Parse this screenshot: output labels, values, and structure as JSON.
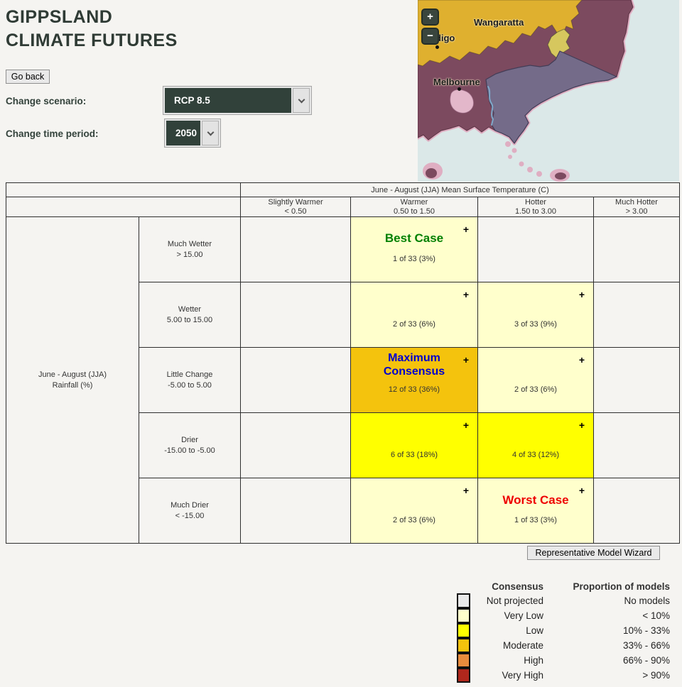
{
  "header": {
    "title_line1": "GIPPSLAND",
    "title_line2": "CLIMATE FUTURES"
  },
  "controls": {
    "go_back": "Go back",
    "scenario_label": "Change scenario:",
    "scenario_value": "RCP 8.5",
    "period_label": "Change time period:",
    "period_value": "2050"
  },
  "map": {
    "zoom_in": "+",
    "zoom_out": "−",
    "cities": [
      {
        "label": "Wangaratta"
      },
      {
        "label": "ndigo"
      },
      {
        "label": "Melbourne"
      }
    ],
    "colors": {
      "ocean": "#DBE8E8",
      "region_gold": "#DFB02F",
      "region_maroon": "#7C4A5F",
      "region_purple": "#746B89",
      "region_alpine": "#D6C75E",
      "coast_pink": "#DFAEC2",
      "bay_pink": "#E3B7CA",
      "river_blue": "#7FA8C9",
      "control_bg": "#39453D"
    }
  },
  "matrix": {
    "temp_axis_title": "June - August (JJA) Mean Surface Temperature (C)",
    "rain_axis_line1": "June - August (JJA)",
    "rain_axis_line2": "Rainfall (%)",
    "plus": "+",
    "columns": [
      {
        "label": "Slightly Warmer",
        "range": "< 0.50"
      },
      {
        "label": "Warmer",
        "range": "0.50 to 1.50"
      },
      {
        "label": "Hotter",
        "range": "1.50 to 3.00"
      },
      {
        "label": "Much Hotter",
        "range": "> 3.00"
      }
    ],
    "rows": [
      {
        "label": "Much Wetter",
        "range": "> 15.00"
      },
      {
        "label": "Wetter",
        "range": "5.00 to 15.00"
      },
      {
        "label": "Little Change",
        "range": "-5.00 to 5.00"
      },
      {
        "label": "Drier",
        "range": "-15.00 to -5.00"
      },
      {
        "label": "Much Drier",
        "range": "< -15.00"
      }
    ],
    "levels": {
      "empty": "#E9E9E9",
      "very_low": "#FFFFCC",
      "low": "#FFFF00",
      "moderate": "#F4C30D"
    },
    "grid": [
      [
        null,
        {
          "tag": "Best Case",
          "tag_class": "tag-best",
          "tag_color": "#008000",
          "count": "1 of 33 (3%)",
          "level": "very_low"
        },
        null,
        null
      ],
      [
        null,
        {
          "count": "2 of 33 (6%)",
          "level": "very_low"
        },
        {
          "count": "3 of 33 (9%)",
          "level": "very_low"
        },
        null
      ],
      [
        null,
        {
          "tag": "Maximum Consensus",
          "tag_class": "tag-max",
          "tag_color": "#0000CC",
          "count": "12 of 33 (36%)",
          "level": "moderate"
        },
        {
          "count": "2 of 33 (6%)",
          "level": "very_low"
        },
        null
      ],
      [
        null,
        {
          "count": "6 of 33 (18%)",
          "level": "low"
        },
        {
          "count": "4 of 33 (12%)",
          "level": "low"
        },
        null
      ],
      [
        null,
        {
          "count": "2 of 33 (6%)",
          "level": "very_low"
        },
        {
          "tag": "Worst Case",
          "tag_class": "tag-worst",
          "tag_color": "#EE0000",
          "count": "1 of 33 (3%)",
          "level": "very_low"
        },
        null
      ]
    ]
  },
  "wizard_button": "Representative Model Wizard",
  "legend": {
    "consensus_header": "Consensus",
    "proportion_header": "Proportion of models",
    "rows": [
      {
        "color": "#E9E9E9",
        "consensus": "Not projected",
        "proportion": "No models"
      },
      {
        "color": "#FFFFCC",
        "consensus": "Very Low",
        "proportion": "< 10%"
      },
      {
        "color": "#FFFF00",
        "consensus": "Low",
        "proportion": "10% - 33%"
      },
      {
        "color": "#F4C30D",
        "consensus": "Moderate",
        "proportion": "33% - 66%"
      },
      {
        "color": "#E98C3D",
        "consensus": "High",
        "proportion": "66% - 90%"
      },
      {
        "color": "#B0271C",
        "consensus": "Very High",
        "proportion": "> 90%"
      }
    ]
  }
}
